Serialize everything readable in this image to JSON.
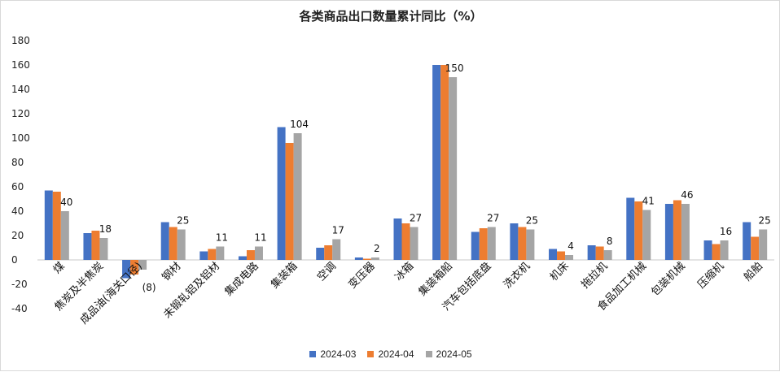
{
  "chart_data": {
    "type": "bar",
    "title": "各类商品出口数量累计同比（%）",
    "xlabel": "",
    "ylabel": "",
    "ylim": [
      -40,
      180
    ],
    "yticks": [
      -40,
      -20,
      0,
      20,
      40,
      60,
      80,
      100,
      120,
      140,
      160,
      180
    ],
    "grid": false,
    "legend_position": "bottom",
    "categories": [
      "煤",
      "焦炭及半焦炭",
      "成品油(海关口径)",
      "钢材",
      "未锻轧铝及铝材",
      "集成电路",
      "集装箱",
      "空调",
      "变压器",
      "冰箱",
      "集装箱船",
      "汽车包括底盘",
      "洗衣机",
      "机床",
      "拖拉机",
      "食品加工机械",
      "包装机械",
      "压缩机",
      "船舶"
    ],
    "series": [
      {
        "name": "2024-03",
        "color": "#4472C4",
        "values": [
          57,
          22,
          -15,
          31,
          7,
          3,
          109,
          10,
          2,
          34,
          160,
          23,
          30,
          9,
          12,
          51,
          46,
          16,
          31
        ]
      },
      {
        "name": "2024-04",
        "color": "#ED7D31",
        "values": [
          56,
          24,
          -12,
          27,
          9,
          8,
          96,
          12,
          1,
          30,
          160,
          26,
          27,
          7,
          11,
          48,
          49,
          13,
          19
        ]
      },
      {
        "name": "2024-05",
        "color": "#A5A5A5",
        "values": [
          40,
          18,
          -8,
          25,
          11,
          11,
          104,
          17,
          2,
          27,
          150,
          27,
          25,
          4,
          8,
          41,
          46,
          16,
          25
        ]
      }
    ],
    "data_labels": [
      "40",
      "18",
      "(8)",
      "25",
      "11",
      "11",
      "104",
      "17",
      "2",
      "27",
      "150",
      "27",
      "25",
      "4",
      "8",
      "41",
      "46",
      "16",
      "25"
    ],
    "negative_label_color": "#C00000"
  }
}
